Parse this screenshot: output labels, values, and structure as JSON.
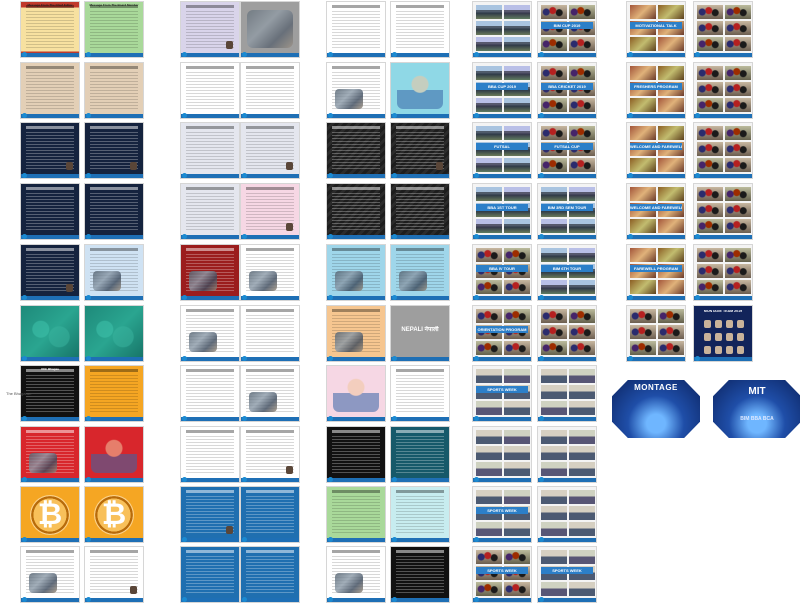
{
  "stray_text": "The Bhagaran",
  "colors": {
    "blue_footer": "#1e6fb5",
    "bitcoin_orange": "#f39c12",
    "cover_blue": "#1f4ea8"
  },
  "columns": [
    {
      "name": "col-1",
      "pages": [
        {
          "style": "red-yellow",
          "cap": "Message From The Chief Editor",
          "kind": "text"
        },
        {
          "style": "green",
          "cap": "Message From The Board Member",
          "kind": "text"
        },
        {
          "style": "tan",
          "cap": "",
          "kind": "text"
        },
        {
          "style": "tan",
          "cap": "",
          "kind": "text"
        },
        {
          "style": "navy",
          "cap": "",
          "kind": "text-photo"
        },
        {
          "style": "navy",
          "cap": "",
          "kind": "text-photo"
        },
        {
          "style": "navy",
          "cap": "",
          "kind": "text"
        },
        {
          "style": "navy",
          "cap": "",
          "kind": "text"
        },
        {
          "style": "navy",
          "cap": "",
          "kind": "text-portrait"
        },
        {
          "style": "lightblue",
          "cap": "",
          "kind": "text-sketch"
        },
        {
          "style": "teal",
          "cap": "",
          "kind": "pattern"
        },
        {
          "style": "teal",
          "cap": "",
          "kind": "pattern"
        },
        {
          "style": "black",
          "cap": "Ohh Bhagaa",
          "kind": "text"
        },
        {
          "style": "orange",
          "cap": "",
          "kind": "text"
        },
        {
          "style": "red",
          "cap": "",
          "kind": "text-moto"
        },
        {
          "style": "red",
          "cap": "",
          "kind": "cartoon"
        },
        {
          "style": "orange",
          "cap": "",
          "kind": "bitcoin",
          "glyph": "₿"
        },
        {
          "style": "orange",
          "cap": "",
          "kind": "bitcoin",
          "glyph": "₿"
        },
        {
          "style": "white",
          "cap": "",
          "kind": "text-brain"
        },
        {
          "style": "white",
          "cap": "",
          "kind": "text-photo"
        }
      ]
    },
    {
      "name": "col-2",
      "pages": [
        {
          "style": "lavender",
          "cap": "",
          "kind": "text-portrait"
        },
        {
          "style": "gray",
          "cap": "",
          "kind": "sketch"
        },
        {
          "style": "white",
          "cap": "",
          "kind": "text"
        },
        {
          "style": "white",
          "cap": "",
          "kind": "text"
        },
        {
          "style": "lightgray",
          "cap": "",
          "kind": "text"
        },
        {
          "style": "lightgray",
          "cap": "",
          "kind": "text-photo"
        },
        {
          "style": "lightgray",
          "cap": "",
          "kind": "text"
        },
        {
          "style": "pink",
          "cap": "",
          "kind": "text-portrait"
        },
        {
          "style": "maroon",
          "cap": "",
          "kind": "text-cartoon"
        },
        {
          "style": "white",
          "cap": "",
          "kind": "text-cartoon"
        },
        {
          "style": "white",
          "cap": "",
          "kind": "text-comic"
        },
        {
          "style": "white",
          "cap": "",
          "kind": "text"
        },
        {
          "style": "white",
          "cap": "",
          "kind": "text"
        },
        {
          "style": "white",
          "cap": "",
          "kind": "text-cartoon"
        },
        {
          "style": "white",
          "cap": "",
          "kind": "text"
        },
        {
          "style": "white",
          "cap": "",
          "kind": "text-portrait"
        },
        {
          "style": "blue",
          "cap": "",
          "kind": "photo"
        },
        {
          "style": "blue",
          "cap": "",
          "kind": "text"
        },
        {
          "style": "blue",
          "cap": "",
          "kind": "text"
        },
        {
          "style": "blue",
          "cap": "",
          "kind": "text"
        }
      ]
    },
    {
      "name": "col-3",
      "pages": [
        {
          "style": "white",
          "cap": "",
          "kind": "text"
        },
        {
          "style": "white",
          "cap": "",
          "kind": "text"
        },
        {
          "style": "white",
          "cap": "",
          "kind": "text-logo"
        },
        {
          "style": "cyan",
          "cap": "",
          "kind": "cartoon"
        },
        {
          "style": "stripes",
          "cap": "",
          "kind": "text"
        },
        {
          "style": "stripes",
          "cap": "",
          "kind": "text-photo"
        },
        {
          "style": "stripes",
          "cap": "",
          "kind": "text"
        },
        {
          "style": "stripes",
          "cap": "",
          "kind": "text"
        },
        {
          "style": "skyblue",
          "cap": "",
          "kind": "text-cartoon"
        },
        {
          "style": "skyblue",
          "cap": "",
          "kind": "text-cartoon"
        },
        {
          "style": "peach",
          "cap": "",
          "kind": "text-cartoon"
        },
        {
          "style": "gray",
          "cap": "NEPALI नेपाली",
          "kind": "title"
        },
        {
          "style": "pink",
          "cap": "",
          "kind": "cartoon"
        },
        {
          "style": "white",
          "cap": "",
          "kind": "text"
        },
        {
          "style": "black",
          "cap": "",
          "kind": "text"
        },
        {
          "style": "darkteal",
          "cap": "",
          "kind": "text"
        },
        {
          "style": "green",
          "cap": "",
          "kind": "text"
        },
        {
          "style": "lightcyan",
          "cap": "",
          "kind": "text"
        },
        {
          "style": "white",
          "cap": "",
          "kind": "text-sketch"
        },
        {
          "style": "black",
          "cap": "",
          "kind": "text"
        }
      ]
    },
    {
      "name": "col-4",
      "pages": [
        {
          "style": "photo",
          "cap": "",
          "kind": "photo-grid",
          "photo": "sky"
        },
        {
          "style": "photo",
          "cap": "BIM CUP 2019",
          "kind": "photo-grid",
          "photo": "crowd"
        },
        {
          "style": "photo",
          "cap": "BBA CUP 2019",
          "kind": "photo-grid",
          "photo": "sky"
        },
        {
          "style": "photo",
          "cap": "BBA CRICKET 2019",
          "kind": "photo-grid",
          "photo": "crowd"
        },
        {
          "style": "photo",
          "cap": "FUTSAL",
          "kind": "photo-grid",
          "photo": "sky"
        },
        {
          "style": "photo",
          "cap": "FUTSAL CUP",
          "kind": "photo-grid",
          "photo": "crowd"
        },
        {
          "style": "photo",
          "cap": "BBA 1ST TOUR",
          "kind": "photo-grid",
          "photo": "sky"
        },
        {
          "style": "photo",
          "cap": "BIM 3RD SEM TOUR",
          "kind": "photo-grid",
          "photo": "sky"
        },
        {
          "style": "photo",
          "cap": "BBA IV TOUR",
          "kind": "photo-grid",
          "photo": "crowd"
        },
        {
          "style": "photo",
          "cap": "BIM 6TH TOUR",
          "kind": "photo-grid",
          "photo": "sky"
        },
        {
          "style": "photo",
          "cap": "ORIENTATION PROGRAM",
          "kind": "photo-grid",
          "photo": "crowd"
        },
        {
          "style": "photo",
          "cap": "",
          "kind": "photo-grid",
          "photo": "crowd"
        },
        {
          "style": "photo",
          "cap": "SPORTS WEEK",
          "kind": "photo-grid",
          "photo": "gym"
        },
        {
          "style": "photo",
          "cap": "",
          "kind": "photo-grid",
          "photo": "gym"
        },
        {
          "style": "photo",
          "cap": "",
          "kind": "photo-grid",
          "photo": "gym"
        },
        {
          "style": "photo",
          "cap": "",
          "kind": "photo-grid",
          "photo": "gym"
        },
        {
          "style": "photo",
          "cap": "SPORTS WEEK",
          "kind": "photo-grid",
          "photo": "gym"
        },
        {
          "style": "photo",
          "cap": "",
          "kind": "photo-grid",
          "photo": "gym"
        },
        {
          "style": "photo",
          "cap": "SPORTS WEEK",
          "kind": "photo-grid",
          "photo": "crowd"
        },
        {
          "style": "photo",
          "cap": "SPORTS WEEK",
          "kind": "photo-grid",
          "photo": "gym"
        }
      ]
    },
    {
      "name": "col-5",
      "pages": [
        {
          "style": "photo",
          "cap": "MOTIVATIONAL TALK",
          "kind": "photo-grid",
          "photo": "warm"
        },
        {
          "style": "photo",
          "cap": "",
          "kind": "photo-grid",
          "photo": "crowd"
        },
        {
          "style": "photo",
          "cap": "FRESHERS PROGRAM",
          "kind": "photo-grid",
          "photo": "warm"
        },
        {
          "style": "photo",
          "cap": "",
          "kind": "photo-grid",
          "photo": "crowd"
        },
        {
          "style": "photo",
          "cap": "WELCOME AND FAREWELL",
          "kind": "photo-grid",
          "photo": "warm"
        },
        {
          "style": "photo",
          "cap": "",
          "kind": "photo-grid",
          "photo": "crowd"
        },
        {
          "style": "photo",
          "cap": "WELCOME AND FAREWELL",
          "kind": "photo-grid",
          "photo": "warm"
        },
        {
          "style": "photo",
          "cap": "",
          "kind": "photo-grid",
          "photo": "crowd"
        },
        {
          "style": "photo",
          "cap": "FAREWELL PROGRAM",
          "kind": "photo-grid",
          "photo": "warm"
        },
        {
          "style": "photo",
          "cap": "",
          "kind": "photo-grid",
          "photo": "crowd"
        },
        {
          "style": "photo",
          "cap": "",
          "kind": "photo-grid",
          "photo": "crowd"
        },
        {
          "style": "montage-team",
          "cap": "MONTAGE TEAM 2019",
          "kind": "team"
        }
      ]
    }
  ],
  "covers": [
    {
      "name": "front-cover",
      "title": "MONTAGE",
      "sub": ""
    },
    {
      "name": "back-cover",
      "title": "MIT",
      "sub": "BIM BBA BCA"
    }
  ]
}
